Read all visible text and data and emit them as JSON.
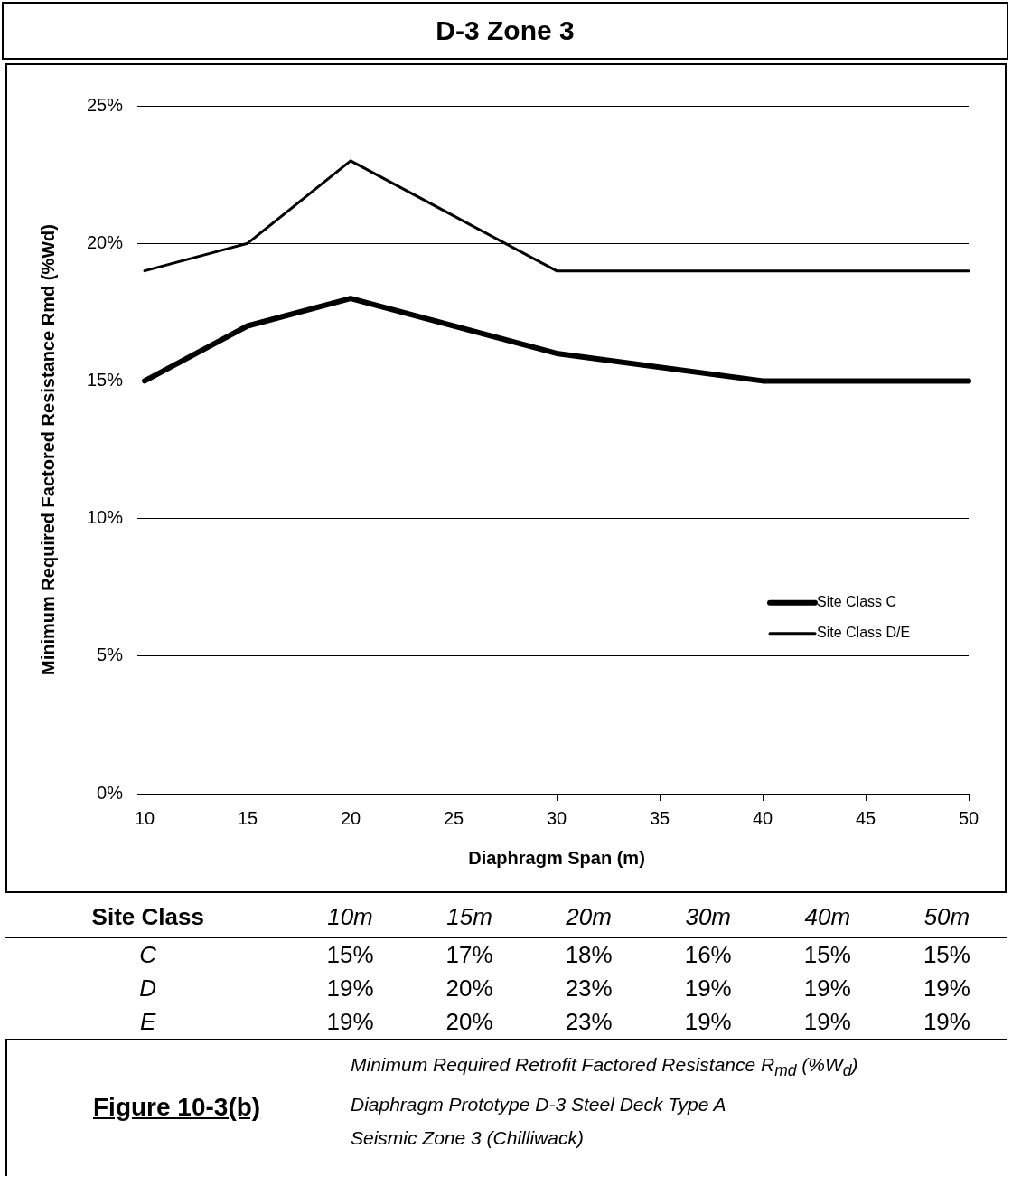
{
  "chart_data": [
    {
      "type": "line",
      "title": "D-3   Zone 3",
      "xlabel": "Diaphragm Span (m)",
      "ylabel": "Minimum Required Factored Resistance Rmd (%Wd)",
      "x": [
        10,
        15,
        20,
        30,
        40,
        50
      ],
      "series": [
        {
          "name": "Site Class C",
          "color": "#000000",
          "values": [
            15,
            17,
            18,
            16,
            15,
            15
          ]
        },
        {
          "name": "Site Class D/E",
          "color": "#000000",
          "values": [
            19,
            20,
            23,
            19,
            19,
            19
          ]
        }
      ],
      "xlim": [
        10,
        50
      ],
      "xticks": [
        10,
        15,
        20,
        25,
        30,
        35,
        40,
        45,
        50
      ],
      "ylim": [
        0,
        25
      ],
      "yticks": [
        {
          "value": 0,
          "label": "0%"
        },
        {
          "value": 5,
          "label": "5%"
        },
        {
          "value": 10,
          "label": "10%"
        },
        {
          "value": 15,
          "label": "15%"
        },
        {
          "value": 20,
          "label": "20%"
        },
        {
          "value": 25,
          "label": "25%"
        }
      ],
      "grid": "y",
      "legend": "right",
      "marker": "none",
      "line_style": "solid"
    },
    {
      "type": "heatmap",
      "ylabel": "Site Class",
      "categories": [
        "10m",
        "15m",
        "20m",
        "30m",
        "40m",
        "50m"
      ],
      "y_categories": [
        "C",
        "D",
        "E"
      ],
      "cells": [
        [
          15,
          17,
          18,
          16,
          15,
          15
        ],
        [
          19,
          20,
          23,
          19,
          19,
          19
        ],
        [
          19,
          20,
          23,
          19,
          19,
          19
        ]
      ],
      "cell_labels": [
        [
          "15%",
          "17%",
          "18%",
          "16%",
          "15%",
          "15%"
        ],
        [
          "19%",
          "20%",
          "23%",
          "19%",
          "19%",
          "19%"
        ],
        [
          "19%",
          "20%",
          "23%",
          "19%",
          "19%",
          "19%"
        ]
      ],
      "annotations": [
        "Figure 10-3(b)",
        "Minimum Required Retrofit Factored Resistance R$_{md}$ (%W$_{d}$)",
        "Diaphragm Prototype D-3 Steel Deck Type A",
        "Seismic Zone 3 (Chilliwack)"
      ]
    }
  ]
}
